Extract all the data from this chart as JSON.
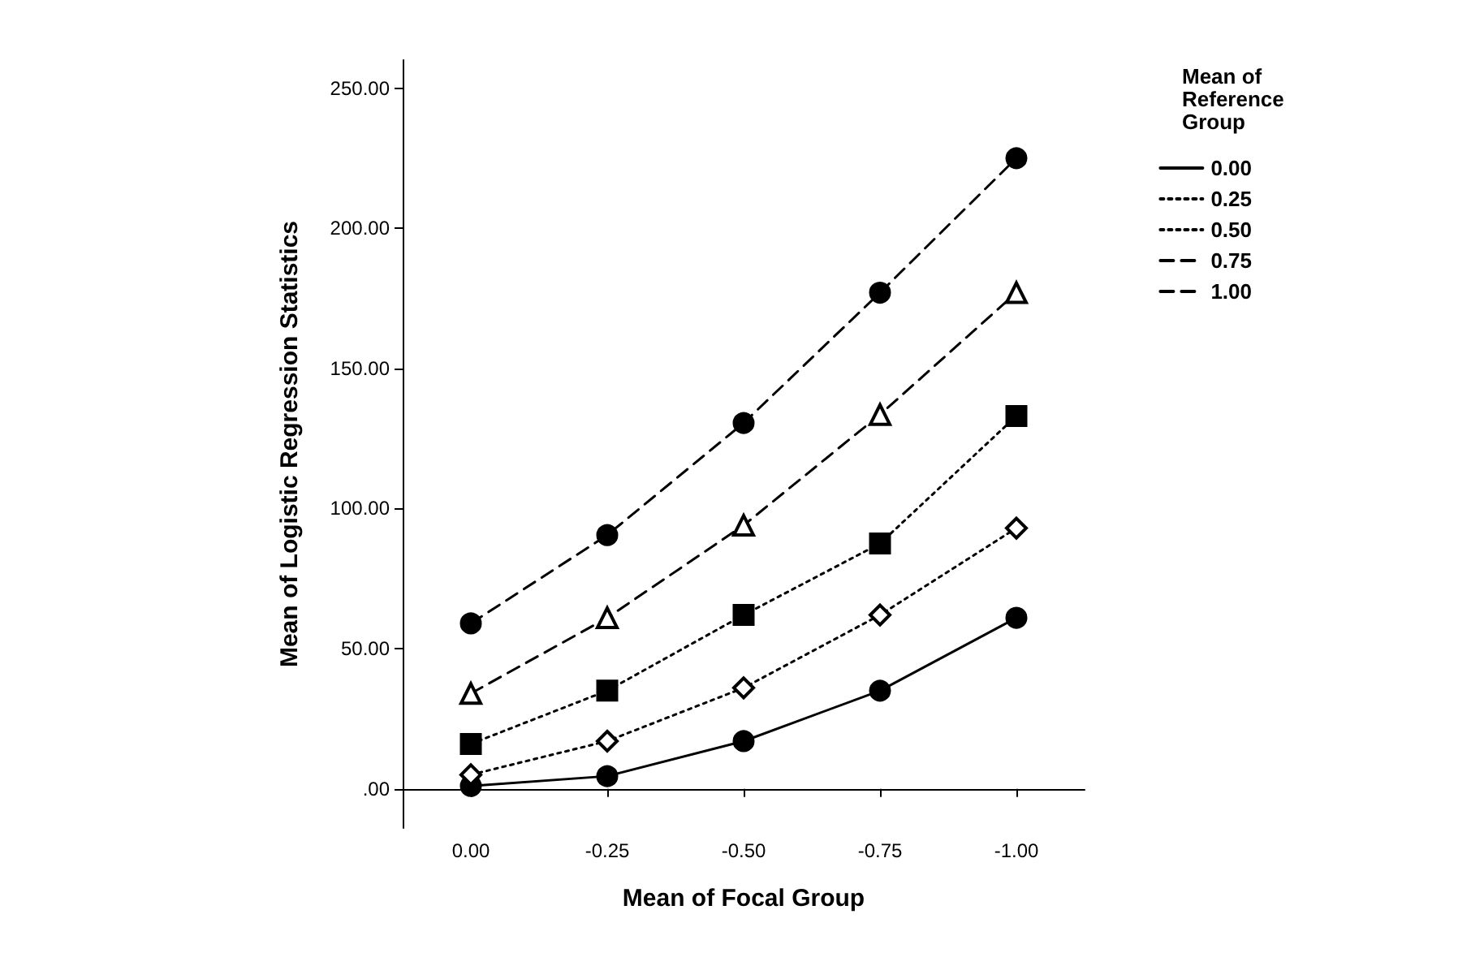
{
  "chart_data": {
    "type": "line",
    "xlabel": "Mean of Focal Group",
    "ylabel": "Mean of Logistic Regression Statistics",
    "legend_title": "Mean of Reference Group",
    "categories": [
      "0.00",
      "-0.25",
      "-0.50",
      "-0.75",
      "-1.00"
    ],
    "series": [
      {
        "name": "0.00",
        "color": "#000000",
        "marker": "circle",
        "line_style": "solid",
        "values": [
          1,
          4.5,
          17,
          35,
          61
        ]
      },
      {
        "name": "0.25",
        "color": "#000000",
        "marker": "diamond",
        "line_style": "dotted",
        "values": [
          5,
          17,
          36,
          62,
          93
        ]
      },
      {
        "name": "0.50",
        "color": "#000000",
        "marker": "square",
        "line_style": "dotted",
        "values": [
          16,
          35,
          62,
          87.5,
          133
        ]
      },
      {
        "name": "0.75",
        "color": "#000000",
        "marker": "triangle",
        "line_style": "dashed",
        "values": [
          34,
          61,
          94,
          133.5,
          177
        ]
      },
      {
        "name": "1.00",
        "color": "#000000",
        "marker": "circle",
        "line_style": "dashed",
        "values": [
          59,
          90.5,
          130.5,
          177,
          225
        ]
      }
    ],
    "ylim": [
      -14,
      260
    ],
    "yticks": [
      {
        "value": 0,
        "label": ".00"
      },
      {
        "value": 50,
        "label": "50.00"
      },
      {
        "value": 100,
        "label": "100.00"
      },
      {
        "value": 150,
        "label": "150.00"
      },
      {
        "value": 200,
        "label": "200.00"
      },
      {
        "value": 250,
        "label": "250.00"
      }
    ],
    "grid": false,
    "legend": "top right"
  }
}
